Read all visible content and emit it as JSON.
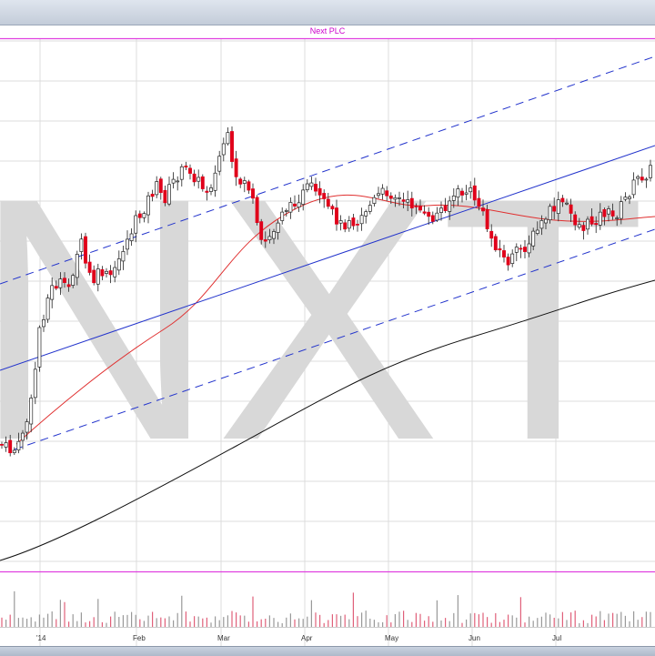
{
  "chart_data": {
    "type": "candlestick",
    "title": "Next PLC",
    "watermark": "NXT",
    "x_ticks": [
      "'14",
      "Feb",
      "Mar",
      "Apr",
      "May",
      "Jun",
      "Jul"
    ],
    "colors": {
      "up": "#ffffff",
      "down": "#e0001a",
      "outline": "#222222",
      "ma_short": "#e03030",
      "ma_long": "#111111",
      "channel": "#2233cc",
      "volume_up": "#999999",
      "volume_down": "#e0607a",
      "separator": "#e040e0",
      "watermark": "#d8d8d8",
      "grid": "#dcdcdc"
    },
    "grid": true
  }
}
